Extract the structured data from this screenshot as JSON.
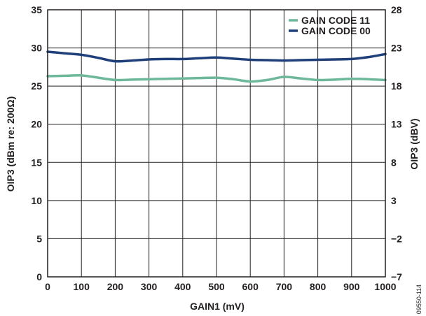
{
  "chart_data": {
    "type": "line",
    "xlabel": "GAIN1 (mV)",
    "ylabel": "OIP3 (dBm re: 200Ω)",
    "y2label": "OIP3 (dBV)",
    "xlim": [
      0,
      1000
    ],
    "ylim": [
      0,
      35
    ],
    "xticks": [
      0,
      100,
      200,
      300,
      400,
      500,
      600,
      700,
      800,
      900,
      1000
    ],
    "yticks": [
      0,
      5,
      10,
      15,
      20,
      25,
      30,
      35
    ],
    "y2ticks": [
      "28",
      "23",
      "18",
      "13",
      "8",
      "3",
      "−2",
      "−7"
    ],
    "grid": true,
    "legend_position": "top-right",
    "series": [
      {
        "name": "GAIN CODE 11",
        "color": "#6db89a",
        "x": [
          0,
          50,
          100,
          150,
          200,
          250,
          300,
          350,
          400,
          450,
          500,
          550,
          600,
          650,
          700,
          750,
          800,
          850,
          900,
          950,
          1000
        ],
        "y": [
          26.3,
          26.35,
          26.4,
          26.1,
          25.8,
          25.85,
          25.9,
          25.95,
          26.0,
          26.05,
          26.1,
          25.9,
          25.6,
          25.8,
          26.2,
          26.0,
          25.8,
          25.85,
          25.95,
          25.9,
          25.8
        ]
      },
      {
        "name": "GAIN CODE 00",
        "color": "#1f3f7a",
        "x": [
          0,
          50,
          100,
          150,
          200,
          250,
          300,
          350,
          400,
          450,
          500,
          550,
          600,
          650,
          700,
          750,
          800,
          850,
          900,
          950,
          1000
        ],
        "y": [
          29.5,
          29.3,
          29.1,
          28.7,
          28.25,
          28.35,
          28.5,
          28.55,
          28.55,
          28.65,
          28.75,
          28.6,
          28.45,
          28.4,
          28.35,
          28.4,
          28.45,
          28.5,
          28.55,
          28.8,
          29.2
        ]
      }
    ]
  },
  "figure_id": "09550-114"
}
